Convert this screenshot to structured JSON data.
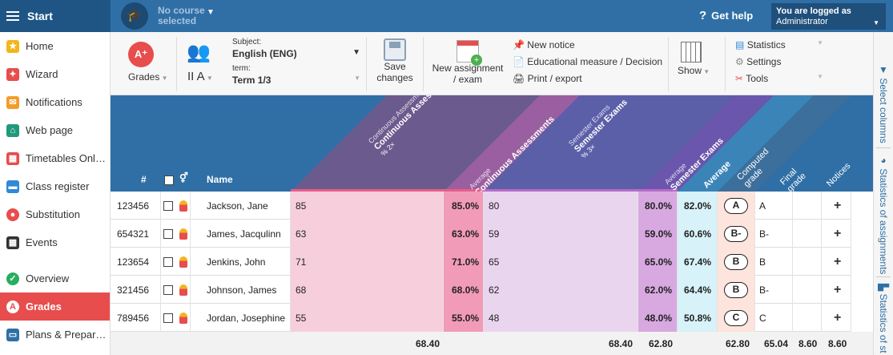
{
  "topbar": {
    "start": "Start",
    "course": [
      "No course",
      "selected"
    ],
    "help": "Get help",
    "login_line1": "You are logged as",
    "login_line2": "Administrator"
  },
  "sidebar": [
    {
      "label": "Home",
      "icon": "star-icon",
      "color": "#f2b51c"
    },
    {
      "label": "Wizard",
      "icon": "wand-icon",
      "color": "#e84d4d"
    },
    {
      "label": "Notifications",
      "icon": "envelope-icon",
      "color": "#f39c2b"
    },
    {
      "label": "Web page",
      "icon": "house-icon",
      "color": "#1f9a7a"
    },
    {
      "label": "Timetables Onl…",
      "icon": "calendar-grid-icon",
      "color": "#e84d4d"
    },
    {
      "label": "Class register",
      "icon": "book-icon",
      "color": "#2f8ad8"
    },
    {
      "label": "Substitution",
      "icon": "person-swap-icon",
      "color": "#e84d4d"
    },
    {
      "label": "Events",
      "icon": "calendar-icon",
      "color": "#333333"
    },
    {
      "label": "Overview",
      "icon": "check-circle-icon",
      "color": "#27ae60"
    },
    {
      "label": "Grades",
      "icon": "grade-a-icon",
      "color": "#e84d4d",
      "active": true
    },
    {
      "label": "Plans & Prepar…",
      "icon": "plans-icon",
      "color": "#2f6fa6"
    }
  ],
  "toolbar": {
    "grades": "Grades",
    "class": "II A",
    "subject_label": "Subject:",
    "subject": "English (ENG)",
    "term_label": "term:",
    "term": "Term 1/3",
    "save": [
      "Save",
      "changes"
    ],
    "new_assignment": [
      "New assignment",
      "/ exam"
    ],
    "new_notice": "New notice",
    "edu_measure": "Educational measure / Decision",
    "print": "Print / export",
    "show": "Show",
    "statistics": "Statistics",
    "settings": "Settings",
    "tools": "Tools"
  },
  "right_panel": [
    "Select columns",
    "Statistics of assignments",
    "Statistics of st"
  ],
  "columns": {
    "id": "#",
    "name": "Name",
    "ca_small": "Continuous Assessments",
    "ca": "Continuous Assess...",
    "ca_weight": "% 2×",
    "avg_small": "Average",
    "ca_avg": "Continuous Assessments",
    "se_small": "Semester Exams",
    "se": "Semester Exams",
    "se_weight": "% 3×",
    "se_avg": "Semester Exams",
    "average": "Average",
    "computed": "Computed grade",
    "final": "Final grade",
    "notices": "Notices"
  },
  "students": [
    {
      "id": "123456",
      "name": "Jackson, Jane",
      "ca": "85",
      "ca_avg": "85.0%",
      "se": "80",
      "se_avg": "80.0%",
      "avg": "82.0%",
      "computed": "A",
      "final": "A",
      "plus": "+"
    },
    {
      "id": "654321",
      "name": "James, Jacqulinn",
      "ca": "63",
      "ca_avg": "63.0%",
      "se": "59",
      "se_avg": "59.0%",
      "avg": "60.6%",
      "computed": "B-",
      "final": "B-",
      "plus": "+"
    },
    {
      "id": "123654",
      "name": "Jenkins, John",
      "ca": "71",
      "ca_avg": "71.0%",
      "se": "65",
      "se_avg": "65.0%",
      "avg": "67.4%",
      "computed": "B",
      "final": "B",
      "plus": "+"
    },
    {
      "id": "321456",
      "name": "Johnson, James",
      "ca": "68",
      "ca_avg": "68.0%",
      "se": "62",
      "se_avg": "62.0%",
      "avg": "64.4%",
      "computed": "B",
      "final": "B-",
      "plus": "+"
    },
    {
      "id": "789456",
      "name": "Jordan, Josephine",
      "ca": "55",
      "ca_avg": "55.0%",
      "se": "48",
      "se_avg": "48.0%",
      "avg": "50.8%",
      "computed": "C",
      "final": "C",
      "plus": "+"
    }
  ],
  "footer": {
    "ca": "68.40",
    "se": "68.40",
    "se_avg": "62.80",
    "computed": "62.80",
    "final_a": "65.04",
    "final_b": "8.60",
    "notices": "8.60"
  },
  "colors": {
    "topbar": "#2f6fa6",
    "ca": "#f7cfdc",
    "ca_avg": "#f29bb8",
    "se": "#ead5ef",
    "se_avg": "#d8a8e0",
    "avg": "#d7f2f8",
    "computed": "#fde4dc"
  }
}
